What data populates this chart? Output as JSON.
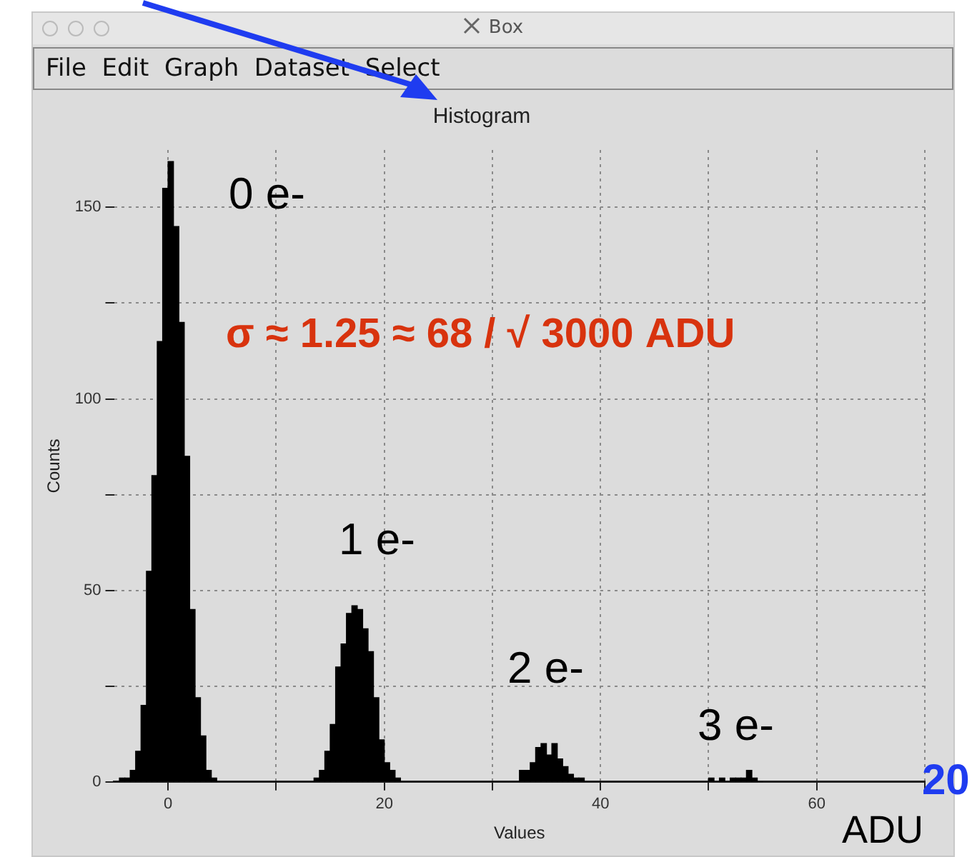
{
  "chart_data": {
    "type": "histogram",
    "title": "Histogram",
    "xlabel": "Values",
    "ylabel": "Counts",
    "bins": [
      -5,
      -4.5,
      -4,
      -3.5,
      -3,
      -2.5,
      -2,
      -1.5,
      -1,
      -0.5,
      0,
      0.5,
      1,
      1.5,
      2,
      2.5,
      3,
      3.5,
      4,
      4.5,
      5,
      5.5,
      6,
      6.5,
      7,
      7.5,
      8,
      8.5,
      9,
      9.5,
      10,
      10.5,
      11,
      11.5,
      12,
      12.5,
      13,
      13.5,
      14,
      14.5,
      15,
      15.5,
      16,
      16.5,
      17,
      17.5,
      18,
      18.5,
      19,
      19.5,
      20,
      20.5,
      21,
      21.5,
      22,
      22.5,
      23,
      23.5,
      24,
      24.5,
      25,
      25.5,
      26,
      26.5,
      27,
      27.5,
      28,
      28.5,
      29,
      29.5,
      30,
      30.5,
      31,
      31.5,
      32,
      32.5,
      33,
      33.5,
      34,
      34.5,
      35,
      35.5,
      36,
      36.5,
      37,
      37.5,
      38,
      38.5,
      39,
      39.5,
      40,
      40.5,
      41,
      41.5,
      42,
      42.5,
      43,
      43.5,
      44,
      44.5,
      45,
      45.5,
      46,
      46.5,
      47,
      47.5,
      48,
      48.5,
      49,
      49.5,
      50,
      50.5,
      51,
      51.5,
      52,
      52.5,
      53,
      53.5,
      54,
      54.5,
      55
    ],
    "values": [
      0,
      1,
      1,
      3,
      8,
      20,
      55,
      80,
      115,
      155,
      162,
      145,
      120,
      85,
      45,
      22,
      12,
      3,
      1,
      0,
      0,
      0,
      0,
      0,
      0,
      0,
      0,
      0,
      0,
      0,
      0,
      0,
      0,
      0,
      0,
      0,
      0,
      1,
      3,
      8,
      15,
      30,
      36,
      44,
      46,
      45,
      40,
      34,
      22,
      11,
      5,
      3,
      1,
      0,
      0,
      0,
      0,
      0,
      0,
      0,
      0,
      0,
      0,
      0,
      0,
      0,
      0,
      0,
      0,
      0,
      0,
      0,
      0,
      0,
      0,
      3,
      3,
      5,
      9,
      10,
      7,
      10,
      6,
      4,
      2,
      1,
      1,
      0,
      0,
      0,
      0,
      0,
      0,
      0,
      0,
      0,
      0,
      0,
      0,
      0,
      0,
      0,
      0,
      0,
      0,
      0,
      0,
      0,
      0,
      0,
      1,
      0,
      1,
      0,
      1,
      1,
      1,
      3,
      1,
      0
    ],
    "color": "#000000",
    "xlim": [
      -5,
      70
    ],
    "xticks": [
      0,
      {
        "value": 10,
        "label": null
      },
      20,
      {
        "value": 30,
        "label": null
      },
      40,
      {
        "value": 50,
        "label": null
      },
      60,
      {
        "value": 70,
        "label": null
      }
    ],
    "ylim": [
      0,
      165
    ],
    "yticks": [
      0,
      {
        "value": 25,
        "label": null
      },
      50,
      {
        "value": 75,
        "label": null
      },
      100,
      {
        "value": 125,
        "label": null
      },
      150
    ],
    "grid": true,
    "line_style": "dotted",
    "annotations": [
      "0 e-",
      "1 e-",
      "2 e-",
      "3 e-",
      "σ ≈ 1.25 ≈ 68 / √ 3000 ADU",
      "ADU",
      "20",
      "Box",
      "File  Edit  Graph  Dataset  Select"
    ]
  }
}
